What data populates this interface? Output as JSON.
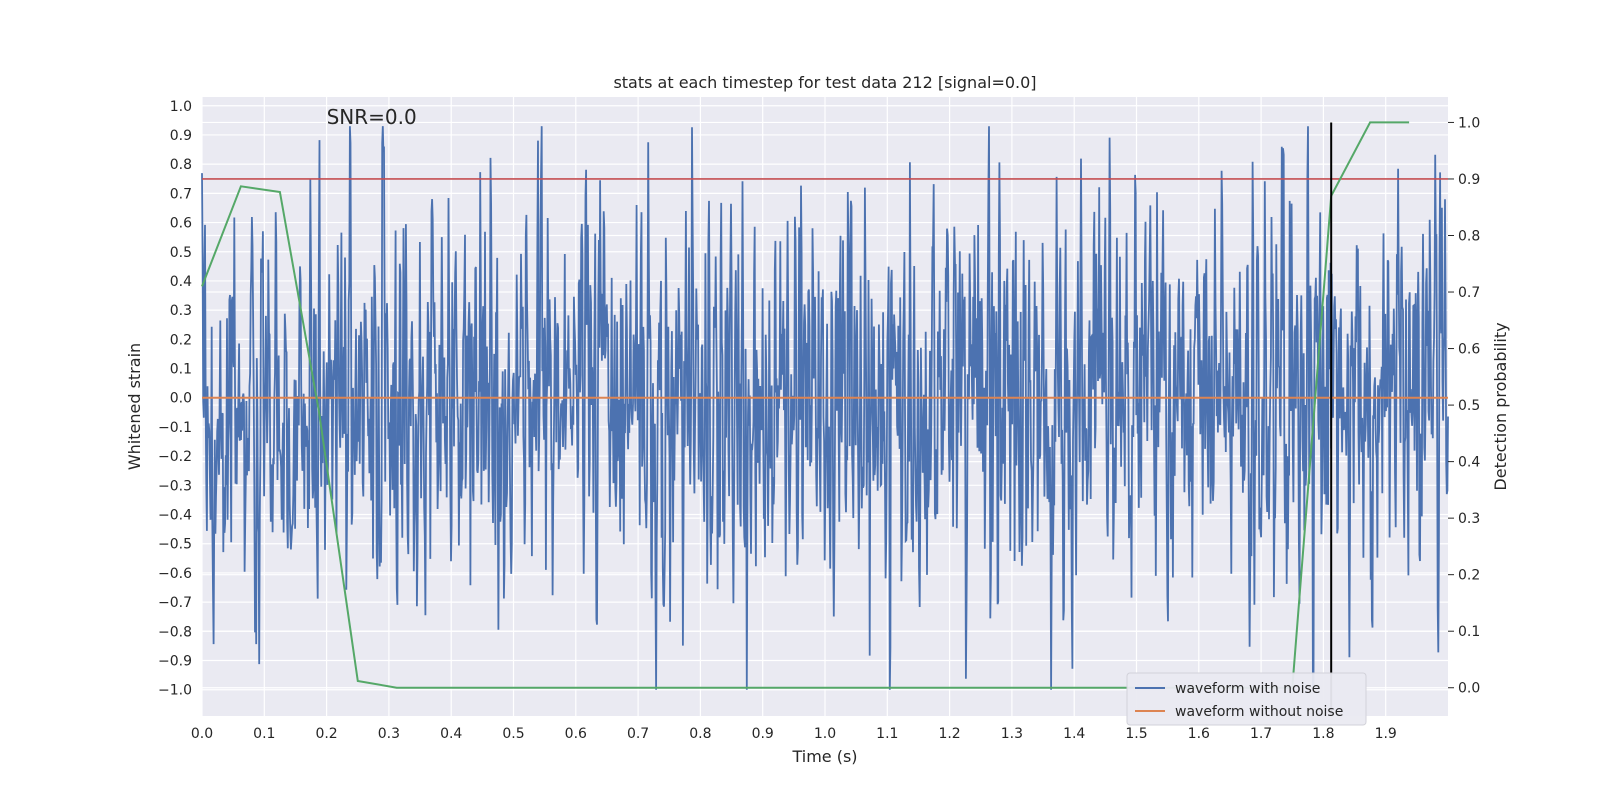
{
  "chart_data": {
    "type": "line",
    "title": "stats at each timestep for test data 212 [signal=0.0]",
    "xlabel": "Time (s)",
    "ylabel": "Whitened strain",
    "y2label": "Detection probability",
    "annotation": "SNR=0.0",
    "xlim": [
      0.0,
      2.0
    ],
    "ylim": [
      -1.09,
      1.03
    ],
    "y2lim": [
      -0.05,
      1.045
    ],
    "xticks": [
      0.0,
      0.1,
      0.2,
      0.3,
      0.4,
      0.5,
      0.6,
      0.7,
      0.8,
      0.9,
      1.0,
      1.1,
      1.2,
      1.3,
      1.4,
      1.5,
      1.6,
      1.7,
      1.8,
      1.9
    ],
    "yticks": [
      1.0,
      0.9,
      0.8,
      0.7,
      0.6,
      0.5,
      0.4,
      0.3,
      0.2,
      0.1,
      0.0,
      -0.1,
      -0.2,
      -0.3,
      -0.4,
      -0.5,
      -0.6,
      -0.7,
      -0.8,
      -0.9,
      -1.0
    ],
    "y2ticks": [
      1.0,
      0.9,
      0.8,
      0.7,
      0.6,
      0.5,
      0.4,
      0.3,
      0.2,
      0.1,
      0.0
    ],
    "grid": true,
    "legend_position": "lower-right",
    "series": [
      {
        "name": "waveform with noise",
        "axis": "left",
        "color": "#4c72b0",
        "x_range": [
          0.0,
          2.0
        ],
        "noise_amplitude": 0.3,
        "min": -1.0,
        "max": 0.93
      },
      {
        "name": "waveform without noise",
        "axis": "left",
        "color": "#dd8452",
        "x": [
          0.0,
          2.0
        ],
        "y": [
          0.0,
          0.0
        ]
      },
      {
        "axis": "right",
        "color": "#55a868",
        "x": [
          0.0,
          0.0625,
          0.125,
          0.1875,
          0.25,
          0.3125,
          0.375,
          0.4375,
          0.5,
          0.5625,
          0.625,
          0.6875,
          0.75,
          0.8125,
          0.875,
          0.9375,
          1.0,
          1.0625,
          1.125,
          1.1875,
          1.25,
          1.3125,
          1.375,
          1.4375,
          1.5,
          1.5625,
          1.625,
          1.6875,
          1.75,
          1.8125,
          1.875,
          1.9375
        ],
        "y": [
          0.71,
          0.887,
          0.877,
          0.49,
          0.012,
          0.0,
          0.0,
          0.0,
          0.0,
          0.0,
          0.0,
          0.0,
          0.0,
          0.0,
          0.0,
          0.0,
          0.0,
          0.0,
          0.0,
          0.0,
          0.0,
          0.0,
          0.0,
          0.0,
          0.0,
          0.0,
          0.0,
          0.0,
          0.0,
          0.87,
          1.0,
          1.0
        ]
      }
    ],
    "threshold": {
      "axis": "right",
      "value": 0.9,
      "color": "#c44e52"
    },
    "vertical_line": {
      "x": 1.8125,
      "color": "#000000"
    }
  },
  "colors": {
    "plot_background": "#eaeaf2",
    "grid": "#ffffff",
    "text": "#262626"
  }
}
